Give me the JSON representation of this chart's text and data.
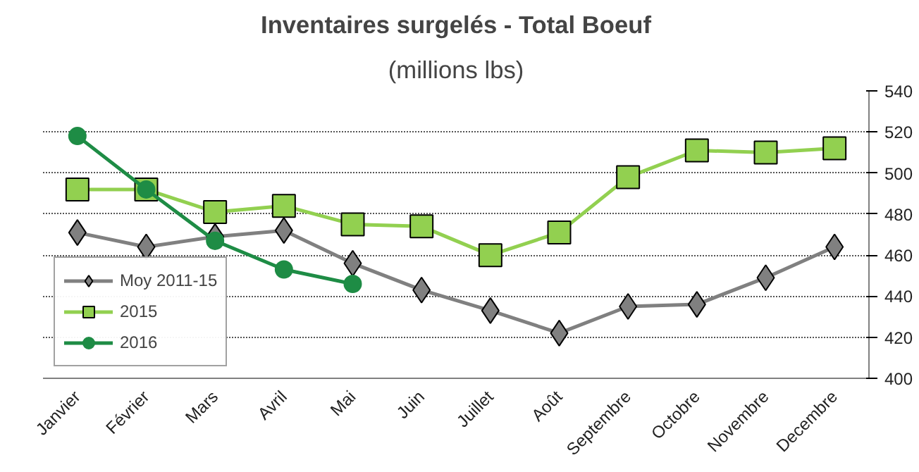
{
  "chart_data": {
    "type": "line",
    "title": "Inventaires surgelés - Total Boeuf",
    "subtitle": "(millions lbs)",
    "categories": [
      "Janvier",
      "Février",
      "Mars",
      "Avril",
      "Mai",
      "Juin",
      "Juillet",
      "Août",
      "Septembre",
      "Octobre",
      "Novembre",
      "Decembre"
    ],
    "series": [
      {
        "name": "Moy 2011-15",
        "color": "#808080",
        "marker": "diamond",
        "values": [
          471,
          464,
          469,
          472,
          456,
          443,
          433,
          422,
          435,
          436,
          449,
          464
        ]
      },
      {
        "name": "2015",
        "color": "#92d050",
        "marker": "square",
        "values": [
          492,
          492,
          481,
          484,
          475,
          474,
          460,
          471,
          498,
          511,
          510,
          512
        ]
      },
      {
        "name": "2016",
        "color": "#1e8c45",
        "marker": "circle",
        "values": [
          518,
          492,
          467,
          453,
          446,
          null,
          null,
          null,
          null,
          null,
          null,
          null
        ]
      }
    ],
    "ylim": [
      400,
      540
    ],
    "yticks": [
      400,
      420,
      440,
      460,
      480,
      500,
      520,
      540
    ],
    "grid": "y",
    "legend": "bottom left"
  }
}
